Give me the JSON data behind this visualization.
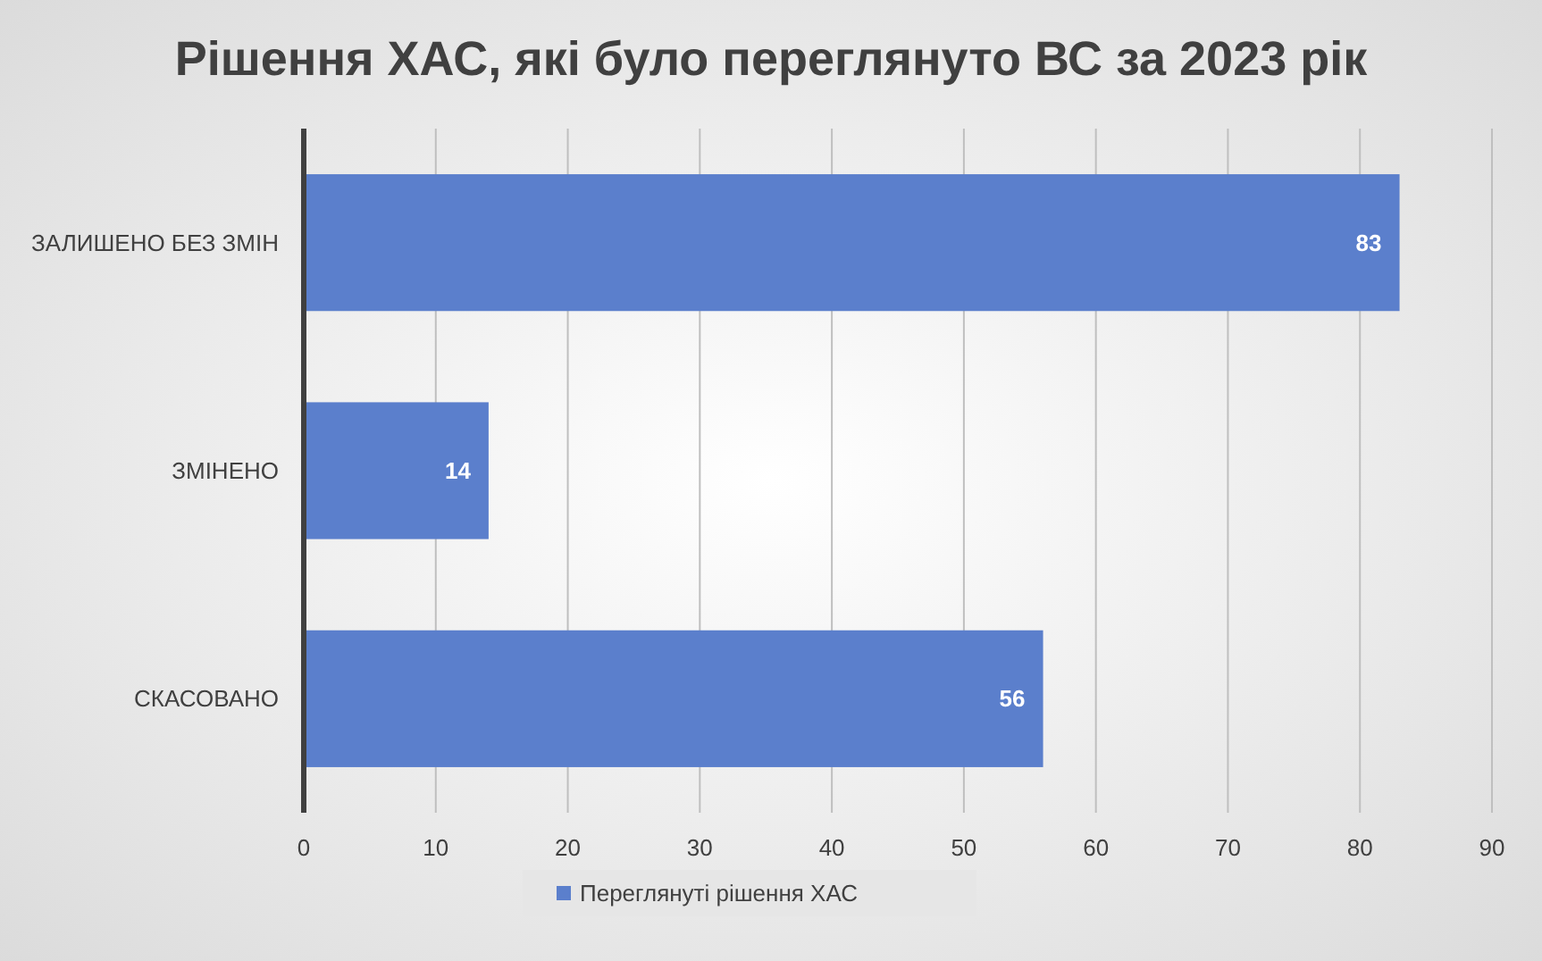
{
  "chart_data": {
    "type": "bar",
    "orientation": "horizontal",
    "title": "Рішення ХАС, які було переглянуто ВС за 2023 рік",
    "categories": [
      "ЗАЛИШЕНО БЕЗ ЗМІН",
      "ЗМІНЕНО",
      "СКАСОВАНО"
    ],
    "series": [
      {
        "name": "Переглянуті рішення ХАС",
        "color": "#5b7fcc",
        "values": [
          83,
          14,
          56
        ]
      }
    ],
    "xlim": [
      0,
      90
    ],
    "xticks": [
      0,
      10,
      20,
      30,
      40,
      50,
      60,
      70,
      80,
      90
    ],
    "grid": "x",
    "legend": "bottom",
    "data_labels": true
  }
}
